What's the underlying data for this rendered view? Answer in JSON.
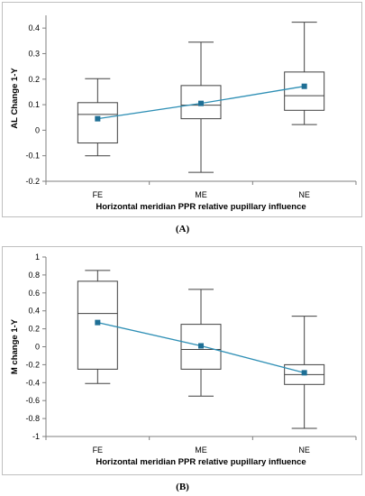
{
  "captions": {
    "a": "(A)",
    "b": "(B)"
  },
  "colors": {
    "mean_line": "#2e8fb5",
    "mean_marker": "#1f6f95",
    "box": "#404040",
    "axis": "#7f7f7f"
  },
  "chart_data": [
    {
      "type": "box",
      "xlabel": "Horizontal meridian PPR relative pupillary influence",
      "ylabel": "AL Change 1-Y",
      "categories": [
        "FE",
        "ME",
        "NE"
      ],
      "ylim": [
        -0.2,
        0.45
      ],
      "yticks": [
        -0.2,
        -0.1,
        0,
        0.1,
        0.2,
        0.3,
        0.4
      ],
      "ytick_labels": [
        "-0.2",
        "-0.1",
        "0",
        "0.1",
        "0.2",
        "0.3",
        "0.4"
      ],
      "grid": false,
      "boxes": [
        {
          "min": -0.1,
          "q1": -0.05,
          "median": 0.062,
          "q3": 0.108,
          "max": 0.202,
          "mean": 0.045
        },
        {
          "min": -0.165,
          "q1": 0.045,
          "median": 0.098,
          "q3": 0.175,
          "max": 0.345,
          "mean": 0.105
        },
        {
          "min": 0.022,
          "q1": 0.078,
          "median": 0.135,
          "q3": 0.228,
          "max": 0.423,
          "mean": 0.172
        }
      ]
    },
    {
      "type": "box",
      "xlabel": "Horizontal meridian PPR relative pupillary influence",
      "ylabel": "M change 1-Y",
      "categories": [
        "FE",
        "ME",
        "NE"
      ],
      "ylim": [
        -1,
        1
      ],
      "yticks": [
        -1,
        -0.8,
        -0.6,
        -0.4,
        -0.2,
        0,
        0.2,
        0.4,
        0.6,
        0.8,
        1
      ],
      "ytick_labels": [
        "-1",
        "-0.8",
        "-0.6",
        "-0.4",
        "-0.2",
        "0",
        "0.2",
        "0.4",
        "0.6",
        "0.8",
        "1"
      ],
      "grid": false,
      "boxes": [
        {
          "min": -0.41,
          "q1": -0.25,
          "median": 0.37,
          "q3": 0.73,
          "max": 0.85,
          "mean": 0.27
        },
        {
          "min": -0.55,
          "q1": -0.25,
          "median": -0.03,
          "q3": 0.25,
          "max": 0.64,
          "mean": 0.01
        },
        {
          "min": -0.91,
          "q1": -0.42,
          "median": -0.31,
          "q3": -0.2,
          "max": 0.34,
          "mean": -0.29
        }
      ]
    }
  ]
}
